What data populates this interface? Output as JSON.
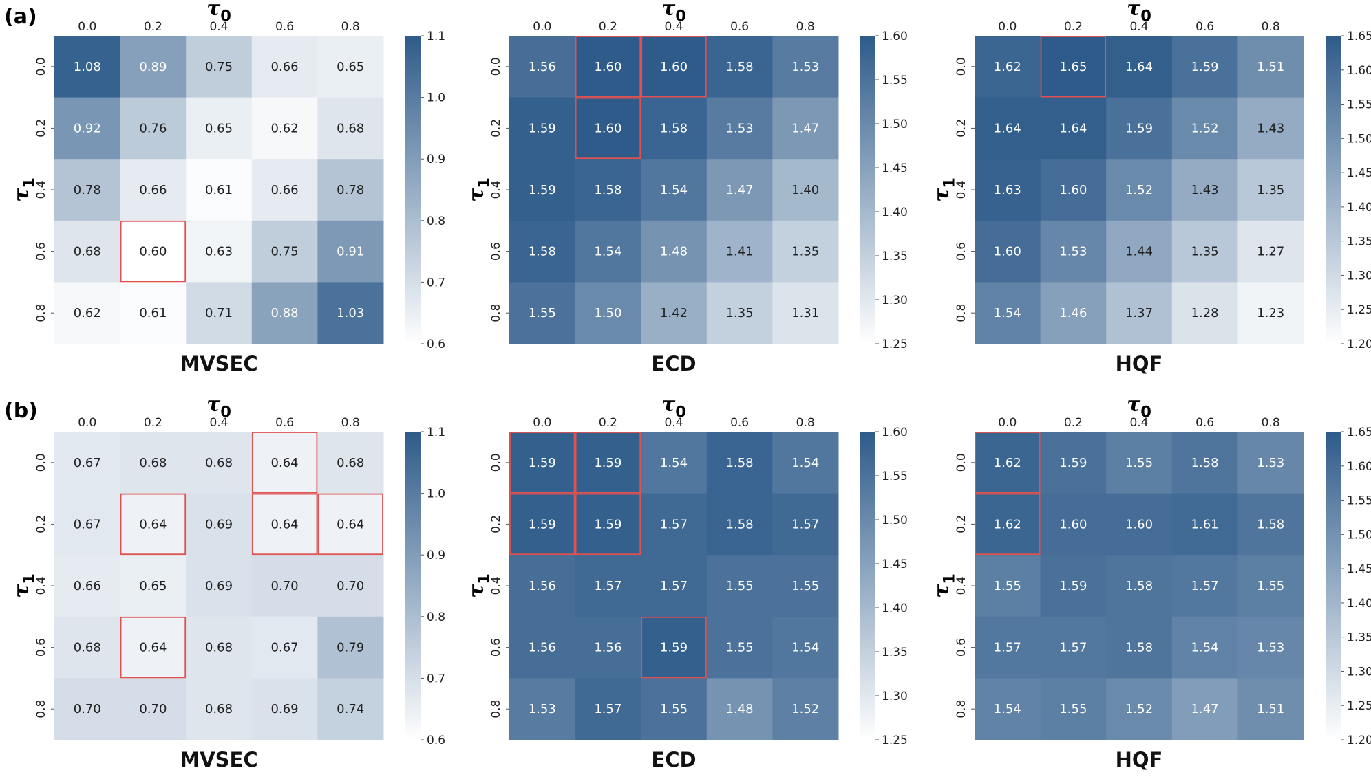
{
  "panel_labels": [
    "(a)",
    "(b)"
  ],
  "axis_symbols": {
    "x": "τ",
    "x_sub": "0",
    "y": "τ",
    "y_sub": "1"
  },
  "colors": {
    "low": "#ffffff",
    "high": "#2e5b8a",
    "highlight": "#e05252"
  },
  "chart_data": [
    {
      "type": "heatmap",
      "panel": "(a)",
      "title": "MVSEC",
      "x_categories": [
        "0.0",
        "0.2",
        "0.4",
        "0.6",
        "0.8"
      ],
      "y_categories": [
        "0.0",
        "0.2",
        "0.4",
        "0.6",
        "0.8"
      ],
      "xlabel": "τ0",
      "ylabel": "τ1",
      "values": [
        [
          "1.08",
          "0.89",
          "0.75",
          "0.66",
          "0.65"
        ],
        [
          "0.92",
          "0.76",
          "0.65",
          "0.62",
          "0.68"
        ],
        [
          "0.78",
          "0.66",
          "0.61",
          "0.66",
          "0.78"
        ],
        [
          "0.68",
          "0.60",
          "0.63",
          "0.75",
          "0.91"
        ],
        [
          "0.62",
          "0.61",
          "0.71",
          "0.88",
          "1.03"
        ]
      ],
      "colorbar": {
        "min": 0.6,
        "max": 1.1,
        "ticks": [
          "0.6",
          "0.7",
          "0.8",
          "0.9",
          "1.0",
          "1.1"
        ]
      },
      "highlighted_cells": [
        [
          3,
          1
        ]
      ]
    },
    {
      "type": "heatmap",
      "panel": "(a)",
      "title": "ECD",
      "x_categories": [
        "0.0",
        "0.2",
        "0.4",
        "0.6",
        "0.8"
      ],
      "y_categories": [
        "0.0",
        "0.2",
        "0.4",
        "0.6",
        "0.8"
      ],
      "xlabel": "τ0",
      "ylabel": "τ1",
      "values": [
        [
          "1.56",
          "1.60",
          "1.60",
          "1.58",
          "1.53"
        ],
        [
          "1.59",
          "1.60",
          "1.58",
          "1.53",
          "1.47"
        ],
        [
          "1.59",
          "1.58",
          "1.54",
          "1.47",
          "1.40"
        ],
        [
          "1.58",
          "1.54",
          "1.48",
          "1.41",
          "1.35"
        ],
        [
          "1.55",
          "1.50",
          "1.42",
          "1.35",
          "1.31"
        ]
      ],
      "colorbar": {
        "min": 1.25,
        "max": 1.6,
        "ticks": [
          "1.25",
          "1.30",
          "1.35",
          "1.40",
          "1.45",
          "1.50",
          "1.55",
          "1.60"
        ]
      },
      "highlighted_cells": [
        [
          0,
          1
        ],
        [
          0,
          2
        ],
        [
          1,
          1
        ]
      ]
    },
    {
      "type": "heatmap",
      "panel": "(a)",
      "title": "HQF",
      "x_categories": [
        "0.0",
        "0.2",
        "0.4",
        "0.6",
        "0.8"
      ],
      "y_categories": [
        "0.0",
        "0.2",
        "0.4",
        "0.6",
        "0.8"
      ],
      "xlabel": "τ0",
      "ylabel": "τ1",
      "values": [
        [
          "1.62",
          "1.65",
          "1.64",
          "1.59",
          "1.51"
        ],
        [
          "1.64",
          "1.64",
          "1.59",
          "1.52",
          "1.43"
        ],
        [
          "1.63",
          "1.60",
          "1.52",
          "1.43",
          "1.35"
        ],
        [
          "1.60",
          "1.53",
          "1.44",
          "1.35",
          "1.27"
        ],
        [
          "1.54",
          "1.46",
          "1.37",
          "1.28",
          "1.23"
        ]
      ],
      "colorbar": {
        "min": 1.2,
        "max": 1.65,
        "ticks": [
          "1.20",
          "1.25",
          "1.30",
          "1.35",
          "1.40",
          "1.45",
          "1.50",
          "1.55",
          "1.60",
          "1.65"
        ]
      },
      "highlighted_cells": [
        [
          0,
          1
        ]
      ]
    },
    {
      "type": "heatmap",
      "panel": "(b)",
      "title": "MVSEC",
      "x_categories": [
        "0.0",
        "0.2",
        "0.4",
        "0.6",
        "0.8"
      ],
      "y_categories": [
        "0.0",
        "0.2",
        "0.4",
        "0.6",
        "0.8"
      ],
      "xlabel": "τ0",
      "ylabel": "τ1",
      "values": [
        [
          "0.67",
          "0.68",
          "0.68",
          "0.64",
          "0.68"
        ],
        [
          "0.67",
          "0.64",
          "0.69",
          "0.64",
          "0.64"
        ],
        [
          "0.66",
          "0.65",
          "0.69",
          "0.70",
          "0.70"
        ],
        [
          "0.68",
          "0.64",
          "0.68",
          "0.67",
          "0.79"
        ],
        [
          "0.70",
          "0.70",
          "0.68",
          "0.69",
          "0.74"
        ]
      ],
      "colorbar": {
        "min": 0.6,
        "max": 1.1,
        "ticks": [
          "0.6",
          "0.7",
          "0.8",
          "0.9",
          "1.0",
          "1.1"
        ]
      },
      "highlighted_cells": [
        [
          0,
          3
        ],
        [
          1,
          1
        ],
        [
          1,
          3
        ],
        [
          1,
          4
        ],
        [
          3,
          1
        ]
      ]
    },
    {
      "type": "heatmap",
      "panel": "(b)",
      "title": "ECD",
      "x_categories": [
        "0.0",
        "0.2",
        "0.4",
        "0.6",
        "0.8"
      ],
      "y_categories": [
        "0.0",
        "0.2",
        "0.4",
        "0.6",
        "0.8"
      ],
      "xlabel": "τ0",
      "ylabel": "τ1",
      "values": [
        [
          "1.59",
          "1.59",
          "1.54",
          "1.58",
          "1.54"
        ],
        [
          "1.59",
          "1.59",
          "1.57",
          "1.58",
          "1.57"
        ],
        [
          "1.56",
          "1.57",
          "1.57",
          "1.55",
          "1.55"
        ],
        [
          "1.56",
          "1.56",
          "1.59",
          "1.55",
          "1.54"
        ],
        [
          "1.53",
          "1.57",
          "1.55",
          "1.48",
          "1.52"
        ]
      ],
      "colorbar": {
        "min": 1.25,
        "max": 1.6,
        "ticks": [
          "1.25",
          "1.30",
          "1.35",
          "1.40",
          "1.45",
          "1.50",
          "1.55",
          "1.60"
        ]
      },
      "highlighted_cells": [
        [
          0,
          0
        ],
        [
          0,
          1
        ],
        [
          1,
          0
        ],
        [
          1,
          1
        ],
        [
          3,
          2
        ]
      ]
    },
    {
      "type": "heatmap",
      "panel": "(b)",
      "title": "HQF",
      "x_categories": [
        "0.0",
        "0.2",
        "0.4",
        "0.6",
        "0.8"
      ],
      "y_categories": [
        "0.0",
        "0.2",
        "0.4",
        "0.6",
        "0.8"
      ],
      "xlabel": "τ0",
      "ylabel": "τ1",
      "values": [
        [
          "1.62",
          "1.59",
          "1.55",
          "1.58",
          "1.53"
        ],
        [
          "1.62",
          "1.60",
          "1.60",
          "1.61",
          "1.58"
        ],
        [
          "1.55",
          "1.59",
          "1.58",
          "1.57",
          "1.55"
        ],
        [
          "1.57",
          "1.57",
          "1.58",
          "1.54",
          "1.53"
        ],
        [
          "1.54",
          "1.55",
          "1.52",
          "1.47",
          "1.51"
        ]
      ],
      "colorbar": {
        "min": 1.2,
        "max": 1.65,
        "ticks": [
          "1.20",
          "1.25",
          "1.30",
          "1.35",
          "1.40",
          "1.45",
          "1.50",
          "1.55",
          "1.60",
          "1.65"
        ]
      },
      "highlighted_cells": [
        [
          0,
          0
        ],
        [
          1,
          0
        ]
      ]
    }
  ]
}
